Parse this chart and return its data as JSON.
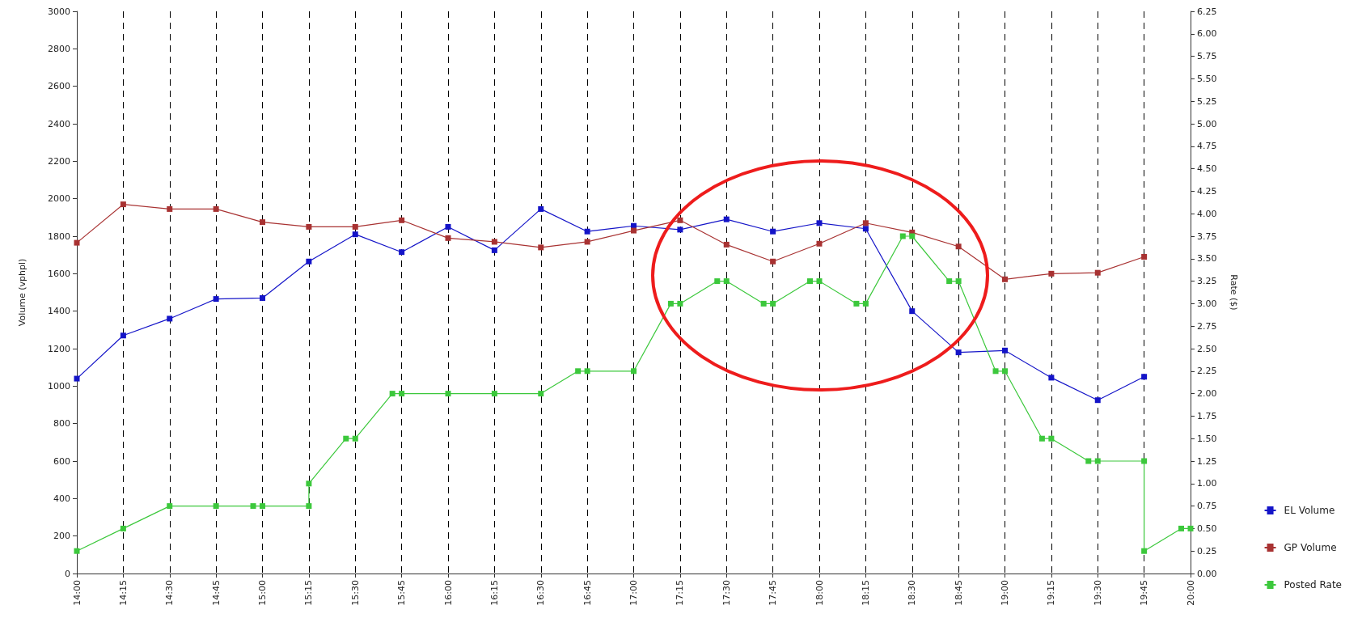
{
  "chart_data": {
    "type": "line",
    "ylabel": "Volume (vphpl)",
    "y2label": "Rate ($)",
    "xlim": [
      14,
      20
    ],
    "xticks": [
      {
        "value": 14,
        "label": "14:00"
      },
      {
        "value": 14.25,
        "label": "14:15"
      },
      {
        "value": 14.5,
        "label": "14:30"
      },
      {
        "value": 14.75,
        "label": "14:45"
      },
      {
        "value": 15,
        "label": "15:00"
      },
      {
        "value": 15.25,
        "label": "15:15"
      },
      {
        "value": 15.5,
        "label": "15:30"
      },
      {
        "value": 15.75,
        "label": "15:45"
      },
      {
        "value": 16,
        "label": "16:00"
      },
      {
        "value": 16.25,
        "label": "16:15"
      },
      {
        "value": 16.5,
        "label": "16:30"
      },
      {
        "value": 16.75,
        "label": "16:45"
      },
      {
        "value": 17,
        "label": "17:00"
      },
      {
        "value": 17.25,
        "label": "17:15"
      },
      {
        "value": 17.5,
        "label": "17:30"
      },
      {
        "value": 17.75,
        "label": "17:45"
      },
      {
        "value": 18,
        "label": "18:00"
      },
      {
        "value": 18.25,
        "label": "18:15"
      },
      {
        "value": 18.5,
        "label": "18:30"
      },
      {
        "value": 18.75,
        "label": "18:45"
      },
      {
        "value": 19,
        "label": "19:00"
      },
      {
        "value": 19.25,
        "label": "19:15"
      },
      {
        "value": 19.5,
        "label": "19:30"
      },
      {
        "value": 19.75,
        "label": "19:45"
      },
      {
        "value": 20,
        "label": "20:00"
      }
    ],
    "ylim": [
      0,
      3000
    ],
    "yticks": [
      0,
      200,
      400,
      600,
      800,
      1000,
      1200,
      1400,
      1600,
      1800,
      2000,
      2200,
      2400,
      2600,
      2800,
      3000
    ],
    "y2lim": [
      0,
      6.25
    ],
    "y2ticks": [
      {
        "value": 0,
        "label": "0.00"
      },
      {
        "value": 0.25,
        "label": "0.25"
      },
      {
        "value": 0.5,
        "label": "0.50"
      },
      {
        "value": 0.75,
        "label": "0.75"
      },
      {
        "value": 1,
        "label": "1.00"
      },
      {
        "value": 1.25,
        "label": "1.25"
      },
      {
        "value": 1.5,
        "label": "1.50"
      },
      {
        "value": 1.75,
        "label": "1.75"
      },
      {
        "value": 2,
        "label": "2.00"
      },
      {
        "value": 2.25,
        "label": "2.25"
      },
      {
        "value": 2.5,
        "label": "2.50"
      },
      {
        "value": 2.75,
        "label": "2.75"
      },
      {
        "value": 3,
        "label": "3.00"
      },
      {
        "value": 3.25,
        "label": "3.25"
      },
      {
        "value": 3.5,
        "label": "3.50"
      },
      {
        "value": 3.75,
        "label": "3.75"
      },
      {
        "value": 4,
        "label": "4.00"
      },
      {
        "value": 4.25,
        "label": "4.25"
      },
      {
        "value": 4.5,
        "label": "4.50"
      },
      {
        "value": 4.75,
        "label": "4.75"
      },
      {
        "value": 5,
        "label": "5.00"
      },
      {
        "value": 5.25,
        "label": "5.25"
      },
      {
        "value": 5.5,
        "label": "5.50"
      },
      {
        "value": 5.75,
        "label": "5.75"
      },
      {
        "value": 6,
        "label": "6.00"
      },
      {
        "value": 6.25,
        "label": "6.25"
      }
    ],
    "grid": "x",
    "legend": "right",
    "marker": "square",
    "line_style": "solid",
    "series": [
      {
        "name": "EL Volume",
        "color": "#1414c8",
        "x": [
          14,
          14.25,
          14.5,
          14.75,
          15,
          15.25,
          15.5,
          15.75,
          16,
          16.25,
          16.5,
          16.75,
          17,
          17.25,
          17.5,
          17.75,
          18,
          18.25,
          18.5,
          18.75,
          19,
          19.25,
          19.5,
          19.75
        ],
        "values": [
          1040,
          1270,
          1360,
          1465,
          1470,
          1665,
          1810,
          1715,
          1850,
          1725,
          1945,
          1825,
          1855,
          1835,
          1890,
          1825,
          1870,
          1840,
          1400,
          1180,
          1190,
          1045,
          925,
          1050
        ]
      },
      {
        "name": "GP Volume",
        "color": "#a83232",
        "x": [
          14,
          14.25,
          14.5,
          14.75,
          15,
          15.25,
          15.5,
          15.75,
          16,
          16.25,
          16.5,
          16.75,
          17,
          17.25,
          17.5,
          17.75,
          18,
          18.25,
          18.5,
          18.75,
          19,
          19.25,
          19.5,
          19.75
        ],
        "values": [
          1765,
          1970,
          1945,
          1945,
          1875,
          1850,
          1850,
          1885,
          1790,
          1770,
          1740,
          1770,
          1830,
          1885,
          1755,
          1665,
          1760,
          1870,
          1820,
          1745,
          1570,
          1600,
          1605,
          1690
        ]
      },
      {
        "name": "Posted Rate",
        "color": "#3cc83c",
        "axis": "y2",
        "x": [
          14,
          14.25,
          14.5,
          14.75,
          14.95,
          15,
          15.25,
          15.25,
          15.45,
          15.5,
          15.7,
          15.75,
          16,
          16.25,
          16.5,
          16.7,
          16.75,
          17,
          17.2,
          17.25,
          17.45,
          17.5,
          17.7,
          17.75,
          17.95,
          18,
          18.2,
          18.25,
          18.45,
          18.5,
          18.7,
          18.75,
          18.95,
          19,
          19.2,
          19.25,
          19.45,
          19.5,
          19.75,
          19.75,
          19.95,
          20
        ],
        "values": [
          0.25,
          0.5,
          0.75,
          0.75,
          0.75,
          0.75,
          0.75,
          1,
          1.5,
          1.5,
          2,
          2,
          2,
          2,
          2,
          2.25,
          2.25,
          2.25,
          3,
          3,
          3.25,
          3.25,
          3,
          3,
          3.25,
          3.25,
          3,
          3,
          3.75,
          3.75,
          3.25,
          3.25,
          2.25,
          2.25,
          1.5,
          1.5,
          1.25,
          1.25,
          1.25,
          0.25,
          0.5,
          0.5
        ]
      }
    ]
  }
}
